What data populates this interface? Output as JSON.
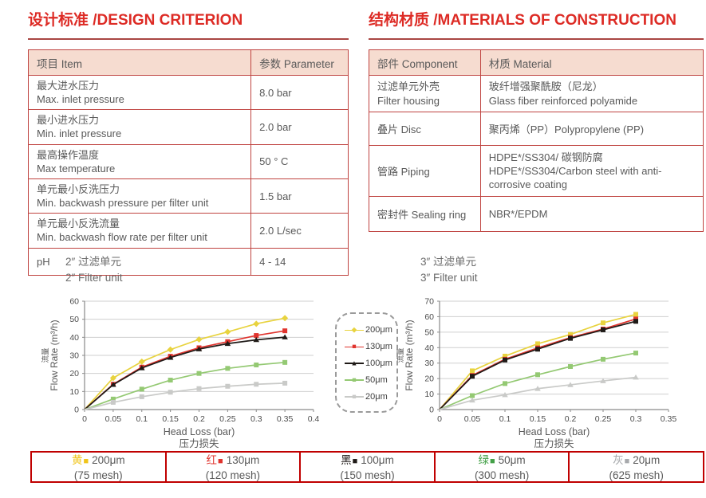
{
  "headers": {
    "left": "设计标准 /DESIGN CRITERION",
    "right": "结构材质 /MATERIALS OF CONSTRUCTION"
  },
  "design_table": {
    "col_item": "项目 Item",
    "col_param": "参数 Parameter",
    "rows": [
      {
        "zh": "最大进水压力",
        "en": "Max. inlet pressure",
        "value": "8.0 bar"
      },
      {
        "zh": "最小进水压力",
        "en": "Min. inlet pressure",
        "value": "2.0 bar"
      },
      {
        "zh": "最高操作温度",
        "en": "Max temperature",
        "value": "50 ° C"
      },
      {
        "zh": "单元最小反洗压力",
        "en": "Min. backwash pressure per filter unit",
        "value": "1.5 bar"
      },
      {
        "zh": "单元最小反洗流量",
        "en": "Min. backwash flow rate per filter unit",
        "value": "2.0 L/sec"
      },
      {
        "zh": "pH",
        "value": "4 - 14"
      }
    ]
  },
  "materials_table": {
    "col_component": "部件 Component",
    "col_material": "材质 Material",
    "rows": [
      {
        "component": "过滤单元外壳",
        "component_en": "Filter housing",
        "material": "玻纤增强聚酰胺（尼龙）",
        "material_en": "Glass fiber reinforced polyamide"
      },
      {
        "component": "叠片 Disc",
        "material": "聚丙烯（PP）Polypropylene (PP)"
      },
      {
        "component": "管路 Piping",
        "material": "HDPE*/SS304/ 碳钢防腐",
        "material_en": "HDPE*/SS304/Carbon steel with anti-corrosive coating"
      },
      {
        "component": "密封件 Sealing ring",
        "material": "NBR*/EPDM"
      }
    ]
  },
  "chart_data": [
    {
      "type": "line",
      "title_zh": "2″ 过滤单元",
      "title_en": "2″ Filter unit",
      "xlabel": "Head Loss (bar)",
      "xlabel_zh": "压力损失",
      "ylabel_zh": "流量",
      "ylabel": "Flow Rate (m³/h)",
      "xlim": [
        0,
        0.4
      ],
      "ylim": [
        0,
        60
      ],
      "xticks": [
        0,
        0.05,
        0.1,
        0.15,
        0.2,
        0.25,
        0.3,
        0.35,
        0.4
      ],
      "yticks": [
        0,
        10,
        20,
        30,
        40,
        50,
        60
      ],
      "grid": true,
      "x": [
        0,
        0.05,
        0.1,
        0.15,
        0.2,
        0.25,
        0.3,
        0.35
      ],
      "series": [
        {
          "name": "200μm",
          "color": "#e8d33f",
          "marker": "diamond",
          "values": [
            0,
            17.5,
            26.5,
            33.2,
            38.8,
            43.0,
            47.5,
            50.6
          ]
        },
        {
          "name": "130μm",
          "color": "#e0342e",
          "marker": "square",
          "values": [
            0,
            14.0,
            23.5,
            29.5,
            34.2,
            37.6,
            41.0,
            43.6
          ]
        },
        {
          "name": "100μm",
          "color": "#1f1a17",
          "marker": "triangle",
          "values": [
            0,
            13.8,
            23.0,
            28.8,
            33.5,
            36.5,
            38.6,
            40.1
          ]
        },
        {
          "name": "50μm",
          "color": "#94c973",
          "marker": "square",
          "values": [
            0,
            5.8,
            11.3,
            16.3,
            20.0,
            22.8,
            24.7,
            26.1
          ]
        },
        {
          "name": "20μm",
          "color": "#c9cac8",
          "marker": "square",
          "values": [
            0,
            4.0,
            7.1,
            9.6,
            11.6,
            12.9,
            14.0,
            14.6
          ]
        }
      ]
    },
    {
      "type": "line",
      "title_zh": "3″ 过滤单元",
      "title_en": "3″ Filter unit",
      "xlabel": "Head Loss (bar)",
      "xlabel_zh": "压力损失",
      "ylabel_zh": "流量",
      "ylabel": "Flow Rate (m³/h)",
      "xlim": [
        0,
        0.35
      ],
      "ylim": [
        0,
        70
      ],
      "xticks": [
        0,
        0.05,
        0.1,
        0.15,
        0.2,
        0.25,
        0.3,
        0.35
      ],
      "yticks": [
        0,
        10,
        20,
        30,
        40,
        50,
        60,
        70
      ],
      "grid": true,
      "x": [
        0,
        0.05,
        0.1,
        0.15,
        0.2,
        0.25,
        0.3
      ],
      "series": [
        {
          "name": "200μm",
          "color": "#e8d33f",
          "marker": "square",
          "values": [
            0,
            25.0,
            34.5,
            42.5,
            48.5,
            56.0,
            61.5
          ]
        },
        {
          "name": "130μm",
          "color": "#e0342e",
          "marker": "square",
          "values": [
            0,
            22.0,
            32.5,
            39.8,
            46.5,
            52.0,
            58.5
          ]
        },
        {
          "name": "100μm",
          "color": "#1f1a17",
          "marker": "square",
          "values": [
            0,
            21.5,
            32.0,
            39.0,
            46.0,
            51.5,
            57.0
          ]
        },
        {
          "name": "50μm",
          "color": "#94c973",
          "marker": "square",
          "values": [
            0,
            9.0,
            16.8,
            22.5,
            27.8,
            32.5,
            36.5
          ]
        },
        {
          "name": "20μm",
          "color": "#c9cac8",
          "marker": "triangle",
          "values": [
            0,
            6.0,
            9.5,
            13.5,
            16.0,
            18.5,
            20.8
          ]
        }
      ]
    }
  ],
  "center_legend": {
    "items": [
      {
        "label": "200μm",
        "color": "#e8d33f",
        "marker": "diamond"
      },
      {
        "label": "130μm",
        "color": "#e0342e",
        "marker": "square"
      },
      {
        "label": "100μm",
        "color": "#1f1a17",
        "marker": "triangle"
      },
      {
        "label": "50μm",
        "color": "#94c973",
        "marker": "square"
      },
      {
        "label": "20μm",
        "color": "#c9cac8",
        "marker": "square"
      }
    ]
  },
  "bottom_legend": {
    "cells": [
      {
        "tag": "黄",
        "swatch": "■",
        "color": "#f0c419",
        "size": "200μm",
        "mesh": "(75 mesh)"
      },
      {
        "tag": "红",
        "swatch": "■",
        "color": "#e0342e",
        "size": "130μm",
        "mesh": "(120 mesh)"
      },
      {
        "tag": "黑",
        "swatch": "■",
        "color": "#1f1a17",
        "size": "100μm",
        "mesh": "(150 mesh)"
      },
      {
        "tag": "绿",
        "swatch": "■",
        "color": "#43a047",
        "size": "50μm",
        "mesh": "(300 mesh)"
      },
      {
        "tag": "灰",
        "swatch": "■",
        "color": "#a7a9ac",
        "size": "20μm",
        "mesh": "(625 mesh)"
      }
    ]
  },
  "colors": {
    "header_red": "#dd2b25",
    "table_border": "#bf4340",
    "table_header_bg": "#f6dcd0",
    "bottom_border": "#c00000"
  }
}
